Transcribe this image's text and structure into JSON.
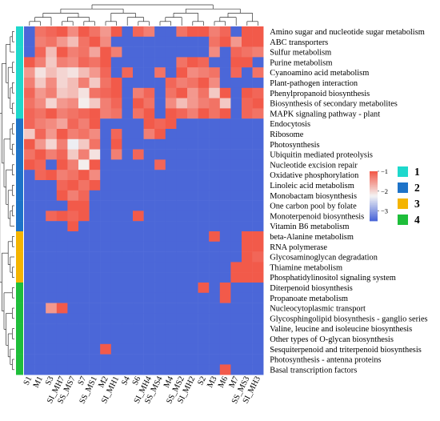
{
  "chart_data": {
    "type": "heatmap",
    "title": "",
    "xlabel": "",
    "ylabel": "",
    "rows": [
      "Amino sugar and nucleotide sugar metabolism",
      "ABC transporters",
      "Sulfur metabolism",
      "Purine metabolism",
      "Cyanoamino acid metabolism",
      "Plant-pathogen interaction",
      "Phenylpropanoid biosynthesis",
      "Biosynthesis of secondary metabolites",
      "MAPK signaling pathway - plant",
      "Endocytosis",
      "Ribosome",
      "Photosynthesis",
      "Ubiquitin mediated proteolysis",
      "Nucleotide excision repair",
      "Oxidative phosphorylation",
      "Linoleic acid metabolism",
      "Monobactam biosynthesis",
      "One carbon pool by folate",
      "Monoterpenoid biosynthesis",
      "Vitamin B6 metabolism",
      "beta-Alanine metabolism",
      "RNA polymerase",
      "Glycosaminoglycan degradation",
      "Thiamine metabolism",
      "Phosphatidylinositol signaling system",
      "Diterpenoid biosynthesis",
      "Propanoate metabolism",
      "Nucleocytoplasmic transport",
      "Glycosphingolipid biosynthesis - ganglio series",
      "Valine, leucine and isoleucine biosynthesis",
      "Other types of O-glycan biosynthesis",
      "Sesquiterpenoid and triterpenoid biosynthesis",
      "Photosynthesis - antenna proteins",
      "Basal transcription factors"
    ],
    "columns": [
      "S1",
      "M1",
      "S3",
      "SI_MH7",
      "SS_MS7",
      "S7",
      "SS_MS1",
      "M2",
      "SI_MH1",
      "S4",
      "S6",
      "SI_MH4",
      "SS_MS4",
      "M4",
      "SS_MS2",
      "SI_MH2",
      "S2",
      "M3",
      "M6",
      "M7",
      "SS_MS3",
      "SI_MH3"
    ],
    "row_groups": [
      "1",
      "1",
      "1",
      "1",
      "1",
      "1",
      "1",
      "1",
      "1",
      "2",
      "2",
      "2",
      "2",
      "2",
      "2",
      "2",
      "2",
      "2",
      "2",
      "2",
      "3",
      "3",
      "3",
      "3",
      "3",
      "4",
      "4",
      "4",
      "4",
      "4",
      "4",
      "4",
      "4",
      "4"
    ],
    "values": [
      [
        -3.5,
        -1.2,
        -1.1,
        -1.0,
        -1.4,
        -1.0,
        -1.2,
        -1.5,
        -0.9,
        -3.5,
        -1.1,
        -1.3,
        -3.5,
        -3.5,
        -1.2,
        -0.9,
        -1.0,
        -1.3,
        -1.1,
        -3.5,
        -1.0,
        -0.9
      ],
      [
        -3.5,
        -1.3,
        -1.2,
        -1.5,
        -1.8,
        -1.2,
        -1.0,
        -1.4,
        -3.5,
        -3.5,
        -3.5,
        -3.5,
        -3.5,
        -3.5,
        -3.5,
        -3.5,
        -3.5,
        -1.2,
        -1.0,
        -1.5,
        -1.0,
        -0.9
      ],
      [
        -3.5,
        -1.1,
        -1.8,
        -1.0,
        -1.3,
        -1.2,
        -1.6,
        -1.0,
        -1.3,
        -3.5,
        -3.5,
        -3.5,
        -3.5,
        -3.5,
        -3.5,
        -3.5,
        -3.5,
        -1.4,
        -3.5,
        -1.1,
        -1.2,
        -1.3
      ],
      [
        -1.0,
        -1.3,
        -1.9,
        -1.3,
        -1.4,
        -1.1,
        -1.2,
        -1.0,
        -3.5,
        -3.5,
        -3.5,
        -3.5,
        -3.5,
        -3.5,
        -1.2,
        -1.0,
        -1.1,
        -3.5,
        -3.5,
        -1.0,
        -1.0,
        -3.5
      ],
      [
        -1.5,
        -2.1,
        -1.8,
        -2.0,
        -2.1,
        -1.8,
        -1.5,
        -1.1,
        -3.5,
        -1.1,
        -3.5,
        -3.5,
        -1.2,
        -3.5,
        -1.0,
        -1.4,
        -1.3,
        -1.2,
        -3.5,
        -1.1,
        -3.5,
        -1.2
      ],
      [
        -1.3,
        -1.9,
        -1.4,
        -2.0,
        -1.8,
        -1.3,
        -1.9,
        -1.2,
        -1.0,
        -3.5,
        -3.5,
        -3.5,
        -3.5,
        -1.1,
        -1.3,
        -1.2,
        -1.0,
        -1.4,
        -3.5,
        -3.5,
        -3.5,
        -3.5
      ],
      [
        -1.1,
        -1.5,
        -1.3,
        -1.9,
        -1.8,
        -2.1,
        -1.2,
        -1.1,
        -1.0,
        -3.5,
        -1.3,
        -1.1,
        -3.5,
        -1.2,
        -1.0,
        -1.5,
        -1.2,
        -1.9,
        -1.0,
        -3.5,
        -1.0,
        -1.1
      ],
      [
        -1.2,
        -1.4,
        -2.0,
        -1.5,
        -1.4,
        -2.2,
        -1.9,
        -1.3,
        -1.1,
        -3.5,
        -1.0,
        -1.2,
        -3.5,
        -1.4,
        -1.8,
        -1.5,
        -1.3,
        -1.2,
        -1.9,
        -3.5,
        -1.1,
        -1.0
      ],
      [
        -1.1,
        -1.2,
        -1.0,
        -1.3,
        -1.2,
        -1.1,
        -1.0,
        -1.3,
        -1.2,
        -3.5,
        -1.2,
        -1.0,
        -3.5,
        -1.0,
        -1.1,
        -1.3,
        -1.0,
        -1.2,
        -1.0,
        -3.5,
        -1.1,
        -1.2
      ],
      [
        -1.1,
        -1.3,
        -1.4,
        -1.6,
        -1.1,
        -1.3,
        -1.0,
        -3.5,
        -3.5,
        -3.5,
        -3.5,
        -1.0,
        -1.1,
        -1.0,
        -3.5,
        -3.5,
        -3.5,
        -3.5,
        -3.5,
        -3.5,
        -3.5,
        -3.5
      ],
      [
        -1.9,
        -1.1,
        -1.5,
        -1.0,
        -1.3,
        -1.2,
        -1.4,
        -3.5,
        -1.1,
        -3.5,
        -3.5,
        -1.3,
        -1.0,
        -3.5,
        -3.5,
        -3.5,
        -3.5,
        -3.5,
        -3.5,
        -3.5,
        -3.5,
        -3.5
      ],
      [
        -1.0,
        -1.5,
        -2.0,
        -1.3,
        -2.3,
        -1.9,
        -1.2,
        -3.5,
        -1.0,
        -3.5,
        -3.5,
        -3.5,
        -3.5,
        -3.5,
        -3.5,
        -3.5,
        -3.5,
        -3.5,
        -3.5,
        -3.5,
        -3.5,
        -3.5
      ],
      [
        -1.2,
        -1.0,
        -1.3,
        -1.1,
        -1.9,
        -1.3,
        -2.1,
        -3.5,
        -1.3,
        -3.5,
        -1.1,
        -3.5,
        -3.5,
        -3.5,
        -3.5,
        -3.5,
        -3.5,
        -3.5,
        -3.5,
        -3.5,
        -3.5,
        -3.5
      ],
      [
        -1.0,
        -1.1,
        -3.5,
        -1.0,
        -1.3,
        -2.2,
        -1.0,
        -3.5,
        -3.5,
        -3.5,
        -3.5,
        -3.5,
        -1.1,
        -3.5,
        -3.5,
        -3.5,
        -3.5,
        -3.5,
        -3.5,
        -3.5,
        -3.5,
        -3.5
      ],
      [
        -3.5,
        -1.1,
        -1.0,
        -1.3,
        -1.2,
        -1.0,
        -1.4,
        -3.5,
        -3.5,
        -3.5,
        -3.5,
        -3.5,
        -3.5,
        -3.5,
        -3.5,
        -3.5,
        -3.5,
        -3.5,
        -3.5,
        -3.5,
        -3.5,
        -3.5
      ],
      [
        -3.5,
        -3.5,
        -3.5,
        -1.1,
        -1.0,
        -1.2,
        -1.0,
        -3.5,
        -3.5,
        -3.5,
        -3.5,
        -3.5,
        -3.5,
        -3.5,
        -3.5,
        -3.5,
        -3.5,
        -3.5,
        -3.5,
        -3.5,
        -3.5,
        -3.5
      ],
      [
        -3.5,
        -3.5,
        -3.5,
        -1.0,
        -1.3,
        -1.1,
        -3.5,
        -3.5,
        -3.5,
        -3.5,
        -3.5,
        -3.5,
        -3.5,
        -3.5,
        -3.5,
        -3.5,
        -3.5,
        -3.5,
        -3.5,
        -3.5,
        -3.5,
        -3.5
      ],
      [
        -3.5,
        -3.5,
        -3.5,
        -3.5,
        -1.0,
        -1.0,
        -3.5,
        -3.5,
        -3.5,
        -3.5,
        -3.5,
        -3.5,
        -3.5,
        -3.5,
        -3.5,
        -3.5,
        -3.5,
        -3.5,
        -3.5,
        -3.5,
        -3.5,
        -3.5
      ],
      [
        -3.5,
        -3.5,
        -1.1,
        -1.0,
        -1.1,
        -1.0,
        -3.5,
        -3.5,
        -3.5,
        -3.5,
        -1.0,
        -3.5,
        -3.5,
        -3.5,
        -3.5,
        -3.5,
        -3.5,
        -3.5,
        -3.5,
        -3.5,
        -3.5,
        -3.5
      ],
      [
        -3.5,
        -3.5,
        -3.5,
        -3.5,
        -1.0,
        -3.5,
        -3.5,
        -3.5,
        -3.5,
        -3.5,
        -3.5,
        -3.5,
        -3.5,
        -3.5,
        -3.5,
        -3.5,
        -3.5,
        -3.5,
        -3.5,
        -3.5,
        -3.5,
        -3.5
      ],
      [
        -3.5,
        -3.5,
        -3.5,
        -3.5,
        -3.5,
        -3.5,
        -3.5,
        -3.5,
        -3.5,
        -3.5,
        -3.5,
        -3.5,
        -3.5,
        -3.5,
        -3.5,
        -3.5,
        -3.5,
        -1.0,
        -3.5,
        -3.5,
        -1.0,
        -1.0
      ],
      [
        -3.5,
        -3.5,
        -3.5,
        -3.5,
        -3.5,
        -3.5,
        -3.5,
        -3.5,
        -3.5,
        -3.5,
        -3.5,
        -3.5,
        -3.5,
        -3.5,
        -3.5,
        -3.5,
        -3.5,
        -3.5,
        -3.5,
        -3.5,
        -1.0,
        -1.0
      ],
      [
        -3.5,
        -3.5,
        -3.5,
        -3.5,
        -3.5,
        -3.5,
        -3.5,
        -3.5,
        -3.5,
        -3.5,
        -3.5,
        -3.5,
        -3.5,
        -3.5,
        -3.5,
        -3.5,
        -3.5,
        -3.5,
        -3.5,
        -3.5,
        -1.0,
        -1.1
      ],
      [
        -3.5,
        -3.5,
        -3.5,
        -3.5,
        -3.5,
        -3.5,
        -3.5,
        -3.5,
        -3.5,
        -3.5,
        -3.5,
        -3.5,
        -3.5,
        -3.5,
        -3.5,
        -3.5,
        -3.5,
        -3.5,
        -3.5,
        -1.0,
        -1.0,
        -1.0
      ],
      [
        -3.5,
        -3.5,
        -3.5,
        -3.5,
        -3.5,
        -3.5,
        -3.5,
        -3.5,
        -3.5,
        -3.5,
        -3.5,
        -3.5,
        -3.5,
        -3.5,
        -3.5,
        -3.5,
        -3.5,
        -3.5,
        -3.5,
        -1.0,
        -1.0,
        -1.0
      ],
      [
        -3.5,
        -3.5,
        -3.5,
        -3.5,
        -3.5,
        -3.5,
        -3.5,
        -3.5,
        -3.5,
        -3.5,
        -3.5,
        -3.5,
        -3.5,
        -3.5,
        -3.5,
        -3.5,
        -1.0,
        -3.5,
        -1.0,
        -3.5,
        -3.5,
        -3.5
      ],
      [
        -3.5,
        -3.5,
        -3.5,
        -3.5,
        -3.5,
        -3.5,
        -3.5,
        -3.5,
        -3.5,
        -3.5,
        -3.5,
        -3.5,
        -3.5,
        -3.5,
        -3.5,
        -3.5,
        -3.5,
        -3.5,
        -1.0,
        -3.5,
        -3.5,
        -3.5
      ],
      [
        -3.5,
        -3.5,
        -1.5,
        -1.0,
        -3.5,
        -3.5,
        -3.5,
        -3.5,
        -3.5,
        -3.5,
        -3.5,
        -3.5,
        -3.5,
        -3.5,
        -3.5,
        -3.5,
        -3.5,
        -3.5,
        -3.5,
        -3.5,
        -3.5,
        -3.5
      ],
      [
        -3.5,
        -3.5,
        -3.5,
        -3.5,
        -3.5,
        -3.5,
        -3.5,
        -3.5,
        -3.5,
        -3.5,
        -3.5,
        -3.5,
        -3.5,
        -3.5,
        -3.5,
        -3.5,
        -3.5,
        -3.5,
        -3.5,
        -3.5,
        -3.5,
        -3.5
      ],
      [
        -3.5,
        -3.5,
        -3.5,
        -3.5,
        -3.5,
        -3.5,
        -3.5,
        -3.5,
        -3.5,
        -3.5,
        -3.5,
        -3.5,
        -3.5,
        -3.5,
        -3.5,
        -3.5,
        -3.5,
        -3.5,
        -3.5,
        -3.5,
        -3.5,
        -3.5
      ],
      [
        -3.5,
        -3.5,
        -3.5,
        -3.5,
        -3.5,
        -3.5,
        -3.5,
        -3.5,
        -3.5,
        -3.5,
        -3.5,
        -3.5,
        -3.5,
        -3.5,
        -3.5,
        -3.5,
        -3.5,
        -3.5,
        -3.5,
        -3.5,
        -3.5,
        -3.5
      ],
      [
        -3.5,
        -3.5,
        -3.5,
        -3.5,
        -3.5,
        -3.5,
        -3.5,
        -1.0,
        -3.5,
        -3.5,
        -3.5,
        -3.5,
        -3.5,
        -3.5,
        -3.5,
        -3.5,
        -3.5,
        -3.5,
        -3.5,
        -3.5,
        -3.5,
        -3.5
      ],
      [
        -3.5,
        -3.5,
        -3.5,
        -3.5,
        -3.5,
        -3.5,
        -3.5,
        -3.5,
        -3.5,
        -3.5,
        -3.5,
        -3.5,
        -3.5,
        -3.5,
        -3.5,
        -3.5,
        -3.5,
        -3.5,
        -3.5,
        -3.5,
        -3.5,
        -3.5
      ],
      [
        -3.5,
        -3.5,
        -3.5,
        -3.5,
        -3.5,
        -3.5,
        -3.5,
        -3.5,
        -3.5,
        -3.5,
        -3.5,
        -3.5,
        -3.5,
        -3.5,
        -3.5,
        -3.5,
        -3.5,
        -3.5,
        -1.0,
        -3.5,
        -3.5,
        -3.5
      ]
    ],
    "color_scale": {
      "low": "#4b67d8",
      "mid": "#f4f4f4",
      "high": "#f25a4a",
      "min": -3.5,
      "max": -1.0
    },
    "legend_ticks": [
      -1,
      -2,
      -3
    ],
    "legend_tick_labels": [
      "−1",
      "−2",
      "−3"
    ],
    "cluster_legend": [
      {
        "label": "1",
        "color": "#1ed8cc"
      },
      {
        "label": "2",
        "color": "#1e73c8"
      },
      {
        "label": "3",
        "color": "#f4b400"
      },
      {
        "label": "4",
        "color": "#1ebe3a"
      }
    ],
    "grid": false,
    "legend_placement": "right"
  }
}
